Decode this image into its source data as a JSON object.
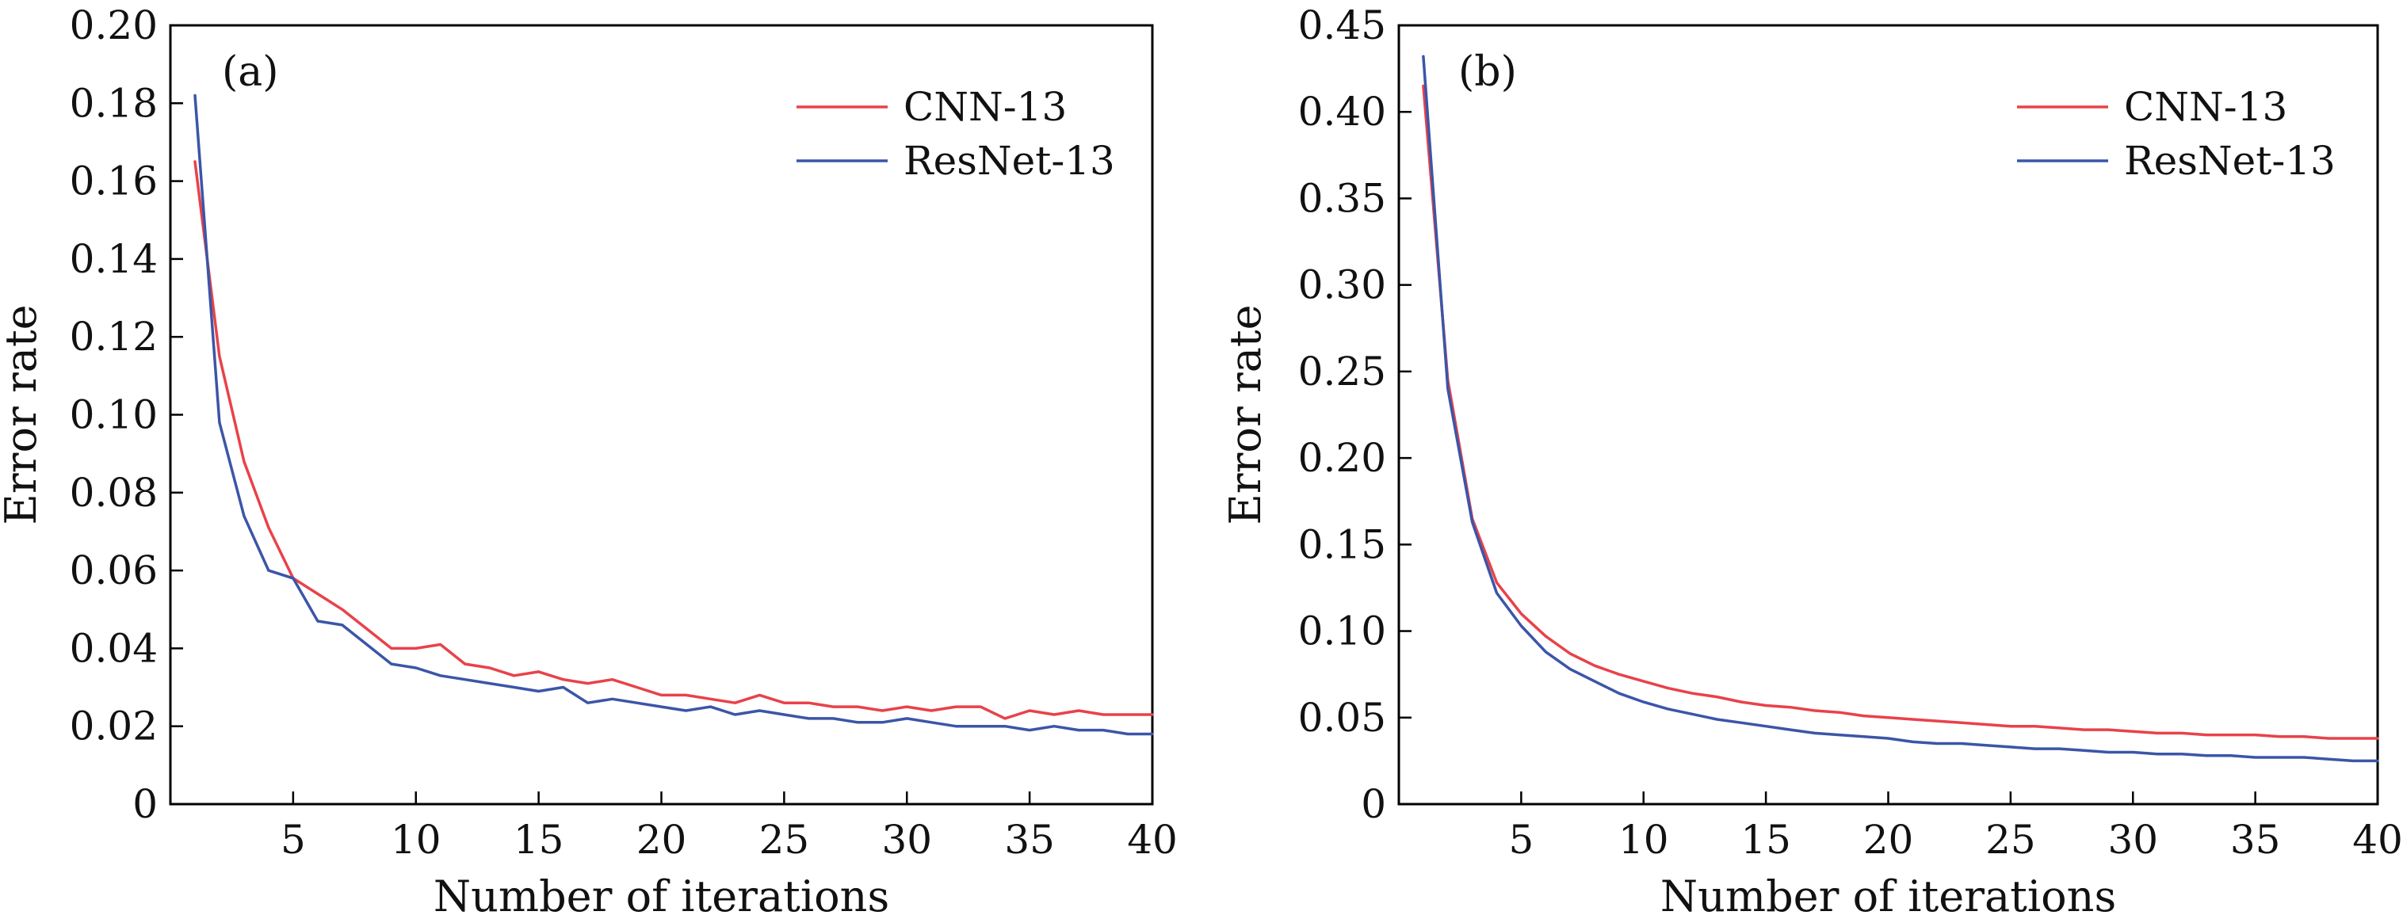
{
  "chart_data": [
    {
      "type": "line",
      "panel_label": "(a)",
      "xlabel": "Number of iterations",
      "ylabel": "Error rate",
      "xlim": [
        0,
        40
      ],
      "ylim": [
        0,
        0.2
      ],
      "x_ticks": [
        5,
        10,
        15,
        20,
        25,
        30,
        35,
        40
      ],
      "x_tick_labels": [
        "5",
        "10",
        "15",
        "20",
        "25",
        "30",
        "35",
        "40"
      ],
      "y_ticks": [
        0,
        0.02,
        0.04,
        0.06,
        0.08,
        0.1,
        0.12,
        0.14,
        0.16,
        0.18,
        0.2
      ],
      "y_tick_labels": [
        "0",
        "0.02",
        "0.04",
        "0.06",
        "0.08",
        "0.10",
        "0.12",
        "0.14",
        "0.16",
        "0.18",
        "0.20"
      ],
      "legend_position": "top-right",
      "grid": false,
      "x": [
        1,
        2,
        3,
        4,
        5,
        6,
        7,
        8,
        9,
        10,
        11,
        12,
        13,
        14,
        15,
        16,
        17,
        18,
        19,
        20,
        21,
        22,
        23,
        24,
        25,
        26,
        27,
        28,
        29,
        30,
        31,
        32,
        33,
        34,
        35,
        36,
        37,
        38,
        39,
        40
      ],
      "series": [
        {
          "name": "CNN-13",
          "color": "#e8424a",
          "values": [
            0.165,
            0.115,
            0.088,
            0.071,
            0.058,
            0.054,
            0.05,
            0.045,
            0.04,
            0.04,
            0.041,
            0.036,
            0.035,
            0.033,
            0.034,
            0.032,
            0.031,
            0.032,
            0.03,
            0.028,
            0.028,
            0.027,
            0.026,
            0.028,
            0.026,
            0.026,
            0.025,
            0.025,
            0.024,
            0.025,
            0.024,
            0.025,
            0.025,
            0.022,
            0.024,
            0.023,
            0.024,
            0.023,
            0.023,
            0.023
          ]
        },
        {
          "name": "ResNet-13",
          "color": "#3b55a8",
          "values": [
            0.182,
            0.098,
            0.074,
            0.06,
            0.058,
            0.047,
            0.046,
            0.041,
            0.036,
            0.035,
            0.033,
            0.032,
            0.031,
            0.03,
            0.029,
            0.03,
            0.026,
            0.027,
            0.026,
            0.025,
            0.024,
            0.025,
            0.023,
            0.024,
            0.023,
            0.022,
            0.022,
            0.021,
            0.021,
            0.022,
            0.021,
            0.02,
            0.02,
            0.02,
            0.019,
            0.02,
            0.019,
            0.019,
            0.018,
            0.018
          ]
        }
      ]
    },
    {
      "type": "line",
      "panel_label": "(b)",
      "xlabel": "Number of iterations",
      "ylabel": "Error rate",
      "xlim": [
        0,
        40
      ],
      "ylim": [
        0,
        0.45
      ],
      "x_ticks": [
        5,
        10,
        15,
        20,
        25,
        30,
        35,
        40
      ],
      "x_tick_labels": [
        "5",
        "10",
        "15",
        "20",
        "25",
        "30",
        "35",
        "40"
      ],
      "y_ticks": [
        0,
        0.05,
        0.1,
        0.15,
        0.2,
        0.25,
        0.3,
        0.35,
        0.4,
        0.45
      ],
      "y_tick_labels": [
        "0",
        "0.05",
        "0.10",
        "0.15",
        "0.20",
        "0.25",
        "0.30",
        "0.35",
        "0.40",
        "0.45"
      ],
      "legend_position": "top-right",
      "grid": false,
      "x": [
        1,
        2,
        3,
        4,
        5,
        6,
        7,
        8,
        9,
        10,
        11,
        12,
        13,
        14,
        15,
        16,
        17,
        18,
        19,
        20,
        21,
        22,
        23,
        24,
        25,
        26,
        27,
        28,
        29,
        30,
        31,
        32,
        33,
        34,
        35,
        36,
        37,
        38,
        39,
        40
      ],
      "series": [
        {
          "name": "CNN-13",
          "color": "#e8424a",
          "values": [
            0.415,
            0.245,
            0.165,
            0.128,
            0.11,
            0.097,
            0.087,
            0.08,
            0.075,
            0.071,
            0.067,
            0.064,
            0.062,
            0.059,
            0.057,
            0.056,
            0.054,
            0.053,
            0.051,
            0.05,
            0.049,
            0.048,
            0.047,
            0.046,
            0.045,
            0.045,
            0.044,
            0.043,
            0.043,
            0.042,
            0.041,
            0.041,
            0.04,
            0.04,
            0.04,
            0.039,
            0.039,
            0.038,
            0.038,
            0.038
          ]
        },
        {
          "name": "ResNet-13",
          "color": "#3b55a8",
          "values": [
            0.432,
            0.24,
            0.163,
            0.122,
            0.103,
            0.088,
            0.078,
            0.071,
            0.064,
            0.059,
            0.055,
            0.052,
            0.049,
            0.047,
            0.045,
            0.043,
            0.041,
            0.04,
            0.039,
            0.038,
            0.036,
            0.035,
            0.035,
            0.034,
            0.033,
            0.032,
            0.032,
            0.031,
            0.03,
            0.03,
            0.029,
            0.029,
            0.028,
            0.028,
            0.027,
            0.027,
            0.027,
            0.026,
            0.025,
            0.025
          ]
        }
      ]
    }
  ]
}
